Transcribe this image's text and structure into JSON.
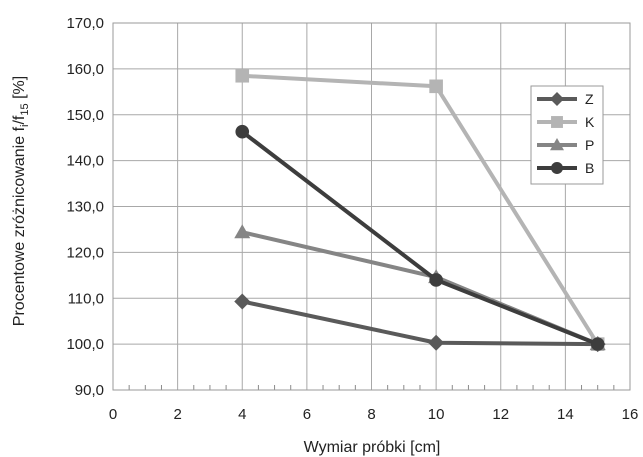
{
  "chart_data": {
    "type": "line",
    "xlabel": "Wymiar próbki [cm]",
    "ylabel": {
      "prefix": "Procentowe zróżnicowanie f",
      "sub1": "i",
      "mid": "/f",
      "sub2": "15",
      "suffix": " [%]"
    },
    "xlim": [
      0,
      16
    ],
    "ylim": [
      90,
      170
    ],
    "xticks": [
      0,
      2,
      4,
      6,
      8,
      10,
      12,
      14,
      16
    ],
    "yticks": [
      "90,0",
      "100,0",
      "110,0",
      "120,0",
      "130,0",
      "140,0",
      "150,0",
      "160,0",
      "170,0"
    ],
    "ytick_values": [
      90,
      100,
      110,
      120,
      130,
      140,
      150,
      160,
      170
    ],
    "grid": true,
    "legend_position": "right",
    "x": [
      4,
      10,
      15
    ],
    "series": [
      {
        "name": "Z",
        "values": [
          109.3,
          100.3,
          100.0
        ],
        "color": "#5a5a5a",
        "marker": "diamond"
      },
      {
        "name": "K",
        "values": [
          158.5,
          156.2,
          100.0
        ],
        "color": "#b4b4b4",
        "marker": "square"
      },
      {
        "name": "P",
        "values": [
          124.4,
          114.6,
          100.0
        ],
        "color": "#858585",
        "marker": "triangle"
      },
      {
        "name": "B",
        "values": [
          146.3,
          114.0,
          100.0
        ],
        "color": "#3d3d3d",
        "marker": "circle"
      }
    ]
  }
}
